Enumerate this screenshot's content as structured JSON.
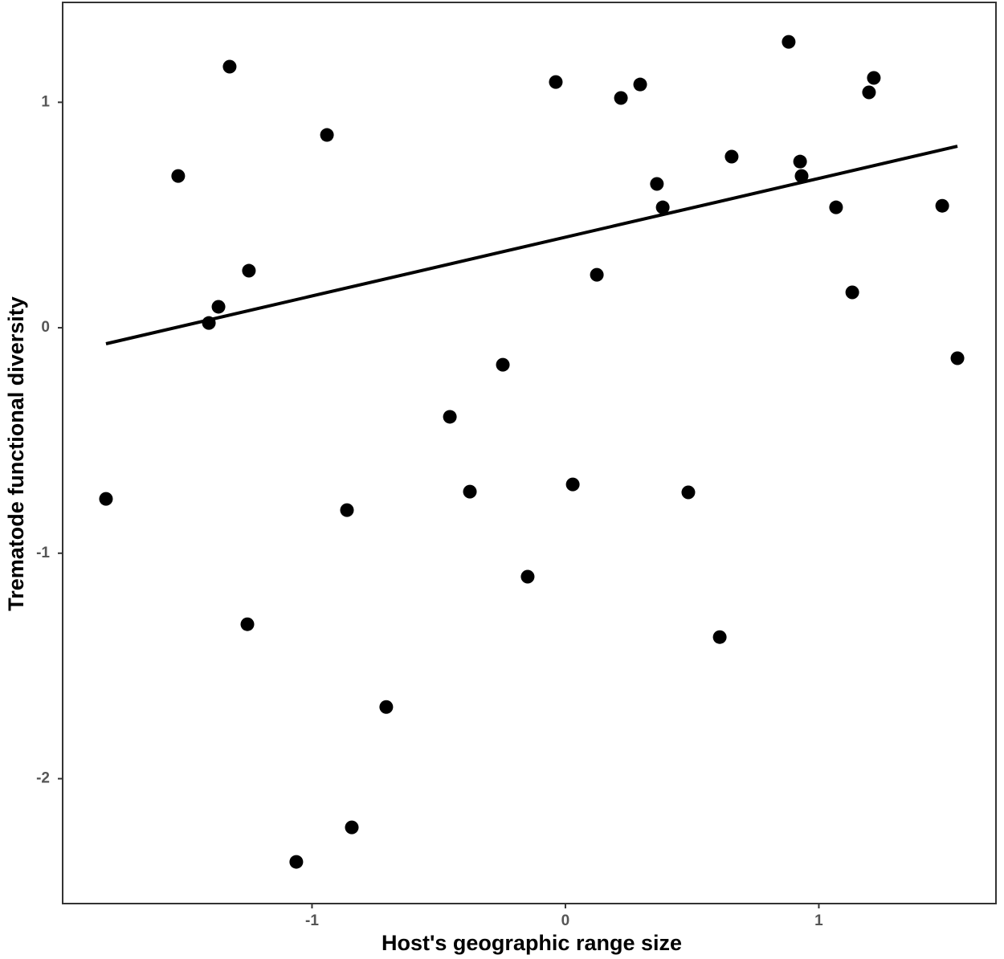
{
  "chart_data": {
    "type": "scatter",
    "x_label": "Host's geographic range size",
    "y_label": "Trematode functional diversity",
    "color": "#000000",
    "x": [
      -1.813,
      -1.528,
      -1.325,
      -1.407,
      -1.369,
      -1.249,
      -1.255,
      -0.941,
      -0.862,
      -0.843,
      -1.062,
      -0.707,
      -0.456,
      -0.377,
      -0.247,
      -0.149,
      -0.038,
      0.029,
      0.124,
      0.219,
      0.295,
      0.361,
      0.384,
      0.485,
      0.609,
      0.656,
      0.881,
      0.926,
      0.932,
      1.068,
      1.132,
      1.198,
      1.217,
      1.487,
      1.547
    ],
    "y": [
      -0.759,
      0.673,
      1.158,
      0.021,
      0.093,
      0.253,
      -1.315,
      0.855,
      -0.809,
      -2.216,
      -2.369,
      -1.682,
      -0.395,
      -0.727,
      -0.164,
      -1.104,
      1.09,
      -0.695,
      0.235,
      1.019,
      1.079,
      0.638,
      0.534,
      -0.73,
      -1.372,
      0.759,
      1.268,
      0.737,
      0.673,
      0.534,
      0.157,
      1.044,
      1.108,
      0.541,
      -0.135
    ],
    "trend_line": {
      "x": [
        -1.813,
        1.547
      ],
      "y": [
        -0.071,
        0.805
      ]
    },
    "xlim": [
      -1.984,
      1.699
    ],
    "ylim": [
      -2.554,
      1.443
    ],
    "xticks": [
      -1,
      0,
      1
    ],
    "yticks": [
      -2,
      -1,
      0,
      1
    ],
    "grid": false
  }
}
